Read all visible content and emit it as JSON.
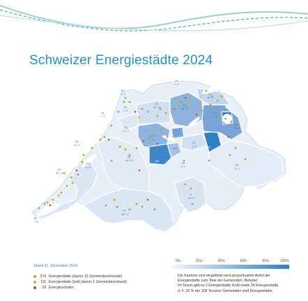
{
  "title": "Schweizer Energiestädte 2024",
  "stand": "Stand 31. Dezember 2024:",
  "legend": [
    {
      "count": "374",
      "label": "Energiestädte (davon 12 Gemeindeverbünde)",
      "color": "#8bb63a"
    },
    {
      "count": "111",
      "label": "Energiestädte Gold (davon 1 Gemeindeverbund)",
      "color": "#d8a62a"
    },
    {
      "count": "29",
      "label": "Energieschulen",
      "color": "#e23a2c"
    }
  ],
  "scale": {
    "ticks": [
      "0%",
      "20%",
      "40%",
      "60%",
      "80%",
      "100%"
    ]
  },
  "note_lines": [
    "Die Kantone sind eingefärbt nach prozentualem Anteil der",
    "Energiestädte zum Total der Gemeinden. Beispiel:",
    "Im Tessin gibt es 2 Energiestädte Gold sowie 26 Energiestädte,",
    "d. h. 26 % der 108 Tessiner Gemeinden sind Energiestädte."
  ],
  "colors": {
    "accent": "#2a8fc1",
    "border": "#ffffff",
    "low": "#e6eef8",
    "high": "#2f7fc4"
  },
  "cantons": [
    {
      "code": "GE",
      "count": "7 / 5",
      "share": 0.15
    },
    {
      "code": "VD",
      "count": "55 / 27",
      "share": 0.2
    },
    {
      "code": "VS",
      "count": "18 / 17",
      "share": 0.2
    },
    {
      "code": "FR",
      "count": "6 / 5",
      "share": 0.12
    },
    {
      "code": "NE",
      "count": "11 / 2",
      "share": 0.3
    },
    {
      "code": "JU",
      "count": "7 / 1",
      "share": 0.15
    },
    {
      "code": "BE",
      "count": "46 / 24",
      "share": 0.2
    },
    {
      "code": "SO",
      "count": "14 / 5",
      "share": 0.15
    },
    {
      "code": "BL",
      "count": "7 / 8",
      "share": 0.18
    },
    {
      "code": "BS",
      "count": "0 / 2",
      "share": 0.5
    },
    {
      "code": "AG",
      "count": "42 / 11",
      "share": 0.25
    },
    {
      "code": "LU",
      "count": "22 / 5",
      "share": 0.35
    },
    {
      "code": "ZG",
      "count": "3 / 3",
      "share": 0.55
    },
    {
      "code": "SZ",
      "count": "4 / 1",
      "share": 0.2
    },
    {
      "code": "ZH",
      "count": "66 / 17",
      "share": 0.5
    },
    {
      "code": "SH",
      "count": "4 / 2",
      "share": 0.2
    },
    {
      "code": "TG",
      "count": "16 / 9",
      "share": 0.3
    },
    {
      "code": "SG",
      "count": "29 / 6",
      "share": 0.5
    },
    {
      "code": "AR",
      "count": "4 / 1",
      "share": 0.25
    },
    {
      "code": "AI",
      "count": "1 / 0",
      "share": 0.9
    },
    {
      "code": "GL",
      "count": "3 / 0",
      "share": 0.95
    },
    {
      "code": "GR",
      "count": "12 / 2",
      "share": 0.12
    },
    {
      "code": "TI",
      "count": "26 / 2",
      "share": 0.26
    },
    {
      "code": "UR",
      "count": "2 / 1",
      "share": 0.2
    },
    {
      "code": "OW",
      "count": "4 / 1",
      "share": 0.75
    },
    {
      "code": "NW",
      "count": "2 / 1",
      "share": 0.3
    }
  ]
}
